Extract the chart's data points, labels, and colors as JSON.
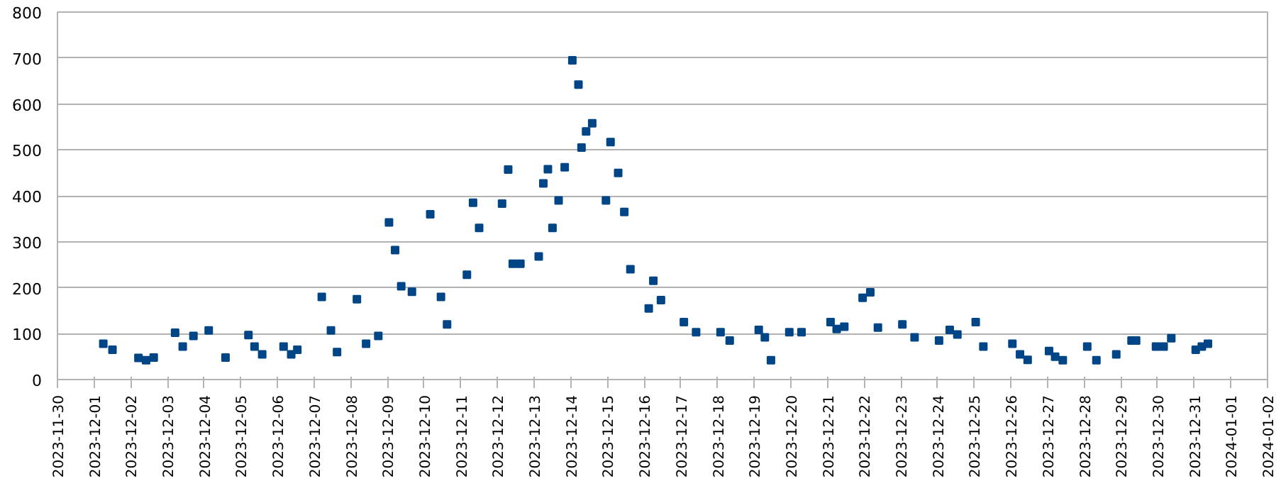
{
  "chart_data": {
    "type": "scatter",
    "marker": "square",
    "grid": "y",
    "x": [
      "2023-12-01T06:00",
      "2023-12-01T12:00",
      "2023-12-02T05:00",
      "2023-12-02T10:00",
      "2023-12-02T15:00",
      "2023-12-03T05:00",
      "2023-12-03T10:00",
      "2023-12-03T17:00",
      "2023-12-04T03:00",
      "2023-12-04T14:00",
      "2023-12-05T05:00",
      "2023-12-05T09:00",
      "2023-12-05T14:00",
      "2023-12-06T04:00",
      "2023-12-06T09:00",
      "2023-12-06T13:00",
      "2023-12-07T05:00",
      "2023-12-07T11:00",
      "2023-12-07T15:00",
      "2023-12-08T04:00",
      "2023-12-08T10:00",
      "2023-12-08T18:00",
      "2023-12-09T01:00",
      "2023-12-09T05:00",
      "2023-12-09T09:00",
      "2023-12-09T16:00",
      "2023-12-10T04:00",
      "2023-12-10T11:00",
      "2023-12-10T15:00",
      "2023-12-11T04:00",
      "2023-12-11T08:00",
      "2023-12-11T12:00",
      "2023-12-12T03:00",
      "2023-12-12T07:00",
      "2023-12-12T10:00",
      "2023-12-12T15:00",
      "2023-12-13T03:00",
      "2023-12-13T06:00",
      "2023-12-13T09:00",
      "2023-12-13T12:00",
      "2023-12-13T16:00",
      "2023-12-13T20:00",
      "2023-12-14T01:00",
      "2023-12-14T05:00",
      "2023-12-14T07:00",
      "2023-12-14T10:00",
      "2023-12-14T14:00",
      "2023-12-14T23:00",
      "2023-12-15T02:00",
      "2023-12-15T07:00",
      "2023-12-15T11:00",
      "2023-12-15T15:00",
      "2023-12-16T03:00",
      "2023-12-16T06:00",
      "2023-12-16T11:00",
      "2023-12-17T02:00",
      "2023-12-17T10:00",
      "2023-12-18T02:00",
      "2023-12-18T08:00",
      "2023-12-19T03:00",
      "2023-12-19T07:00",
      "2023-12-19T11:00",
      "2023-12-19T23:00",
      "2023-12-20T07:00",
      "2023-12-21T02:00",
      "2023-12-21T06:00",
      "2023-12-21T11:00",
      "2023-12-21T23:00",
      "2023-12-22T04:00",
      "2023-12-22T09:00",
      "2023-12-23T01:00",
      "2023-12-23T09:00",
      "2023-12-24T01:00",
      "2023-12-24T08:00",
      "2023-12-24T13:00",
      "2023-12-25T01:00",
      "2023-12-25T06:00",
      "2023-12-26T01:00",
      "2023-12-26T06:00",
      "2023-12-26T11:00",
      "2023-12-27T01:00",
      "2023-12-27T05:00",
      "2023-12-27T10:00",
      "2023-12-28T02:00",
      "2023-12-28T08:00",
      "2023-12-28T21:00",
      "2023-12-29T07:00",
      "2023-12-29T10:00",
      "2023-12-29T23:00",
      "2023-12-30T04:00",
      "2023-12-30T09:00",
      "2023-12-31T01:00",
      "2023-12-31T05:00",
      "2023-12-31T09:00"
    ],
    "series": [
      {
        "color": "#004586",
        "values": [
          78,
          65,
          47,
          42,
          48,
          102,
          72,
          95,
          107,
          48,
          97,
          72,
          55,
          72,
          55,
          65,
          180,
          107,
          60,
          175,
          78,
          95,
          342,
          282,
          203,
          191,
          360,
          180,
          120,
          228,
          385,
          330,
          383,
          457,
          252,
          252,
          268,
          427,
          458,
          330,
          390,
          462,
          695,
          642,
          505,
          540,
          558,
          390,
          517,
          450,
          365,
          240,
          155,
          215,
          173,
          125,
          103,
          103,
          85,
          108,
          92,
          42,
          103,
          103,
          125,
          110,
          115,
          178,
          190,
          113,
          120,
          92,
          85,
          108,
          98,
          125,
          72,
          78,
          55,
          43,
          62,
          50,
          42,
          72,
          42,
          55,
          85,
          85,
          72,
          72,
          90,
          65,
          72,
          78
        ]
      }
    ],
    "xlim": [
      "2023-11-30",
      "2024-01-02"
    ],
    "xticks": [
      "2023-11-30",
      "2023-12-01",
      "2023-12-02",
      "2023-12-03",
      "2023-12-04",
      "2023-12-05",
      "2023-12-06",
      "2023-12-07",
      "2023-12-08",
      "2023-12-09",
      "2023-12-10",
      "2023-12-11",
      "2023-12-12",
      "2023-12-13",
      "2023-12-14",
      "2023-12-15",
      "2023-12-16",
      "2023-12-17",
      "2023-12-18",
      "2023-12-19",
      "2023-12-20",
      "2023-12-21",
      "2023-12-22",
      "2023-12-23",
      "2023-12-24",
      "2023-12-25",
      "2023-12-26",
      "2023-12-27",
      "2023-12-28",
      "2023-12-29",
      "2023-12-30",
      "2023-12-31",
      "2024-01-01",
      "2024-01-02"
    ],
    "ylim": [
      0,
      800
    ],
    "yticks": [
      0,
      100,
      200,
      300,
      400,
      500,
      600,
      700,
      800
    ]
  }
}
